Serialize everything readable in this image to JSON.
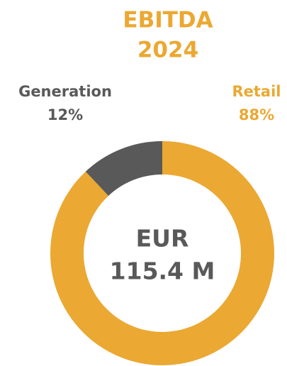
{
  "chart_data": {
    "type": "pie",
    "donut": true,
    "title": [
      "EBITDA",
      "2024"
    ],
    "categories": [
      "Generation",
      "Retail"
    ],
    "values": [
      12,
      88
    ],
    "value_labels": [
      "12%",
      "88%"
    ],
    "colors": [
      "#595959",
      "#EBA832"
    ],
    "center_label": [
      "EUR",
      "115.4 M"
    ]
  }
}
